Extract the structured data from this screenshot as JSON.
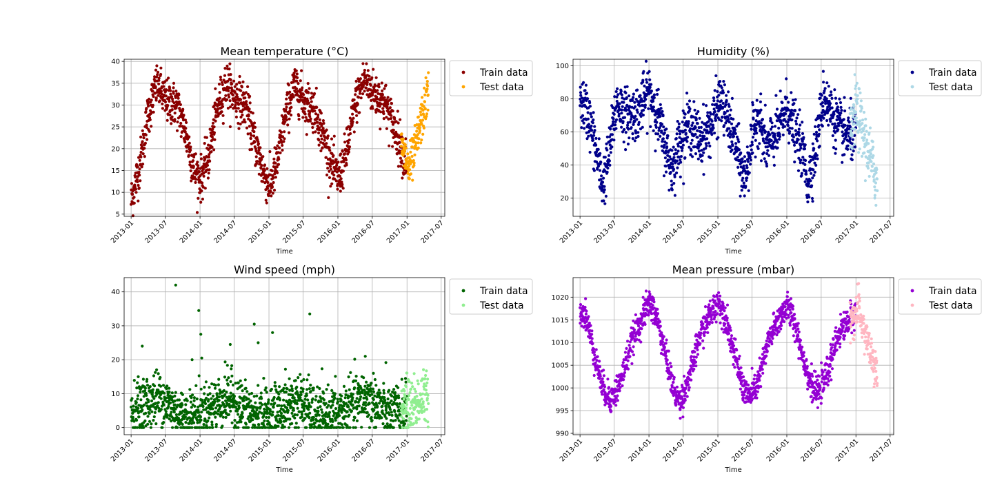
{
  "chart_data": [
    {
      "type": "scatter",
      "title": "Mean temperature (°C)",
      "xlabel": "Time",
      "ylabel": "",
      "xlim": [
        "2012-11-25",
        "2017-07-20"
      ],
      "ylim": [
        4.5,
        40.5
      ],
      "yticks": [
        5,
        10,
        15,
        20,
        25,
        30,
        35,
        40
      ],
      "xticks": [
        "2013-01",
        "2013-07",
        "2014-01",
        "2014-07",
        "2015-01",
        "2015-07",
        "2016-01",
        "2016-07",
        "2017-01",
        "2017-07"
      ],
      "grid": true,
      "legend": "upper-right-outside",
      "series": [
        {
          "name": "Train data",
          "color": "#8b0000",
          "x_range": [
            "2013-01-01",
            "2016-12-31"
          ],
          "trend": [
            [
              "2013-01-01",
              8
            ],
            [
              "2013-02-15",
              16
            ],
            [
              "2013-04-01",
              28
            ],
            [
              "2013-05-20",
              35
            ],
            [
              "2013-07-01",
              31
            ],
            [
              "2013-09-01",
              30
            ],
            [
              "2013-10-15",
              24
            ],
            [
              "2013-12-01",
              15
            ],
            [
              "2014-01-05",
              13
            ],
            [
              "2014-02-15",
              18
            ],
            [
              "2014-04-01",
              29
            ],
            [
              "2014-05-20",
              35
            ],
            [
              "2014-07-01",
              32
            ],
            [
              "2014-09-01",
              30
            ],
            [
              "2014-10-15",
              22
            ],
            [
              "2014-12-01",
              15
            ],
            [
              "2015-01-05",
              11
            ],
            [
              "2015-02-15",
              17
            ],
            [
              "2015-04-01",
              28
            ],
            [
              "2015-05-20",
              35
            ],
            [
              "2015-07-01",
              31
            ],
            [
              "2015-09-01",
              29
            ],
            [
              "2015-10-15",
              23
            ],
            [
              "2015-12-01",
              16
            ],
            [
              "2016-01-05",
              13
            ],
            [
              "2016-02-15",
              19
            ],
            [
              "2016-04-01",
              30
            ],
            [
              "2016-05-20",
              36
            ],
            [
              "2016-07-01",
              33
            ],
            [
              "2016-09-01",
              31
            ],
            [
              "2016-10-15",
              26
            ],
            [
              "2016-12-31",
              17
            ]
          ],
          "spread": 2.5
        },
        {
          "name": "Test data",
          "color": "#ffa500",
          "x_range": [
            "2016-12-01",
            "2017-04-24"
          ],
          "trend": [
            [
              "2016-12-01",
              20
            ],
            [
              "2016-12-25",
              18
            ],
            [
              "2017-01-10",
              15
            ],
            [
              "2017-02-10",
              19
            ],
            [
              "2017-03-10",
              25
            ],
            [
              "2017-04-24",
              33
            ]
          ],
          "spread": 2.5
        }
      ]
    },
    {
      "type": "scatter",
      "title": "Humidity (%)",
      "xlabel": "Time",
      "ylabel": "",
      "xlim": [
        "2012-11-25",
        "2017-07-20"
      ],
      "ylim": [
        9,
        104
      ],
      "yticks": [
        20,
        40,
        60,
        80,
        100
      ],
      "xticks": [
        "2013-01",
        "2013-07",
        "2014-01",
        "2014-07",
        "2015-01",
        "2015-07",
        "2016-01",
        "2016-07",
        "2017-01",
        "2017-07"
      ],
      "grid": true,
      "legend": "upper-right-outside",
      "series": [
        {
          "name": "Train data",
          "color": "#00008b",
          "x_range": [
            "2013-01-01",
            "2016-12-31"
          ],
          "trend": [
            [
              "2013-01-01",
              80
            ],
            [
              "2013-02-15",
              70
            ],
            [
              "2013-04-01",
              45
            ],
            [
              "2013-05-01",
              28
            ],
            [
              "2013-06-01",
              45
            ],
            [
              "2013-07-15",
              78
            ],
            [
              "2013-09-01",
              70
            ],
            [
              "2013-11-01",
              72
            ],
            [
              "2014-01-01",
              85
            ],
            [
              "2014-02-15",
              70
            ],
            [
              "2014-04-01",
              50
            ],
            [
              "2014-05-01",
              37
            ],
            [
              "2014-06-15",
              55
            ],
            [
              "2014-08-01",
              65
            ],
            [
              "2014-10-01",
              55
            ],
            [
              "2014-12-01",
              65
            ],
            [
              "2015-01-15",
              80
            ],
            [
              "2015-03-01",
              65
            ],
            [
              "2015-04-15",
              48
            ],
            [
              "2015-05-20",
              30
            ],
            [
              "2015-07-01",
              55
            ],
            [
              "2015-08-01",
              72
            ],
            [
              "2015-09-15",
              50
            ],
            [
              "2015-11-15",
              60
            ],
            [
              "2016-01-01",
              75
            ],
            [
              "2016-02-15",
              60
            ],
            [
              "2016-04-01",
              45
            ],
            [
              "2016-04-20",
              28
            ],
            [
              "2016-06-01",
              50
            ],
            [
              "2016-07-15",
              82
            ],
            [
              "2016-09-01",
              70
            ],
            [
              "2016-11-01",
              58
            ],
            [
              "2016-12-31",
              58
            ]
          ],
          "spread": 8
        },
        {
          "name": "Test data",
          "color": "#add8e6",
          "x_range": [
            "2016-12-01",
            "2017-04-24"
          ],
          "trend": [
            [
              "2016-12-01",
              55
            ],
            [
              "2017-01-01",
              75
            ],
            [
              "2017-02-01",
              62
            ],
            [
              "2017-03-01",
              50
            ],
            [
              "2017-04-24",
              30
            ]
          ],
          "spread": 9
        }
      ]
    },
    {
      "type": "scatter",
      "title": "Wind speed (mph)",
      "xlabel": "Time",
      "ylabel": "",
      "xlim": [
        "2012-11-25",
        "2017-07-20"
      ],
      "ylim": [
        -2.1,
        44.2
      ],
      "yticks": [
        0,
        10,
        20,
        30,
        40
      ],
      "xticks": [
        "2013-01",
        "2013-07",
        "2014-01",
        "2014-07",
        "2015-01",
        "2015-07",
        "2016-01",
        "2016-07",
        "2017-01",
        "2017-07"
      ],
      "grid": true,
      "legend": "upper-right-outside",
      "series": [
        {
          "name": "Train data",
          "color": "#006400",
          "x_range": [
            "2013-01-01",
            "2016-12-31"
          ],
          "trend": [
            [
              "2013-01-01",
              5
            ],
            [
              "2013-06-01",
              9
            ],
            [
              "2013-10-01",
              3
            ],
            [
              "2014-01-01",
              4
            ],
            [
              "2014-06-01",
              9
            ],
            [
              "2014-10-01",
              4
            ],
            [
              "2015-01-01",
              4
            ],
            [
              "2015-06-01",
              8
            ],
            [
              "2015-10-01",
              3
            ],
            [
              "2016-01-01",
              4
            ],
            [
              "2016-06-01",
              9
            ],
            [
              "2016-10-01",
              4
            ],
            [
              "2016-12-31",
              5
            ]
          ],
          "spread": 4,
          "outliers": [
            [
              "2013-03-01",
              24
            ],
            [
              "2013-08-25",
              42
            ],
            [
              "2013-11-20",
              20
            ],
            [
              "2013-12-25",
              34.5
            ],
            [
              "2014-01-05",
              27.5
            ],
            [
              "2014-01-10",
              20.5
            ],
            [
              "2014-06-10",
              24.5
            ],
            [
              "2014-10-15",
              30.5
            ],
            [
              "2014-11-05",
              25
            ],
            [
              "2015-01-20",
              28
            ],
            [
              "2015-08-05",
              33.5
            ],
            [
              "2016-05-25",
              21
            ]
          ]
        },
        {
          "name": "Test data",
          "color": "#90ee90",
          "x_range": [
            "2016-12-01",
            "2017-04-24"
          ],
          "trend": [
            [
              "2016-12-01",
              6
            ],
            [
              "2017-02-01",
              7
            ],
            [
              "2017-04-24",
              9
            ]
          ],
          "spread": 4
        }
      ]
    },
    {
      "type": "scatter",
      "title": "Mean pressure (mbar)",
      "xlabel": "Time",
      "ylabel": "",
      "xlim": [
        "2012-11-25",
        "2017-07-20"
      ],
      "ylim": [
        989.7,
        1024.3
      ],
      "yticks": [
        990,
        995,
        1000,
        1005,
        1010,
        1015,
        1020
      ],
      "xticks": [
        "2013-01",
        "2013-07",
        "2014-01",
        "2014-07",
        "2015-01",
        "2015-07",
        "2016-01",
        "2016-07",
        "2017-01",
        "2017-07"
      ],
      "grid": true,
      "legend": "upper-right-outside",
      "series": [
        {
          "name": "Train data",
          "color": "#9400d3",
          "x_range": [
            "2013-01-01",
            "2016-12-31"
          ],
          "trend": [
            [
              "2013-01-01",
              1017
            ],
            [
              "2013-02-01",
              1016
            ],
            [
              "2013-03-15",
              1008
            ],
            [
              "2013-05-01",
              1000
            ],
            [
              "2013-06-15",
              997.5
            ],
            [
              "2013-08-01",
              1001
            ],
            [
              "2013-10-01",
              1010
            ],
            [
              "2013-12-01",
              1016
            ],
            [
              "2014-01-05",
              1019
            ],
            [
              "2014-02-15",
              1015
            ],
            [
              "2014-04-01",
              1007
            ],
            [
              "2014-05-15",
              999
            ],
            [
              "2014-06-15",
              997
            ],
            [
              "2014-08-01",
              1002
            ],
            [
              "2014-10-01",
              1012
            ],
            [
              "2014-12-01",
              1017
            ],
            [
              "2015-01-05",
              1019
            ],
            [
              "2015-02-15",
              1015
            ],
            [
              "2015-04-01",
              1007
            ],
            [
              "2015-05-15",
              1000
            ],
            [
              "2015-06-15",
              998
            ],
            [
              "2015-08-01",
              1001
            ],
            [
              "2015-10-01",
              1011
            ],
            [
              "2015-12-01",
              1016
            ],
            [
              "2016-01-05",
              1018
            ],
            [
              "2016-02-15",
              1014
            ],
            [
              "2016-04-01",
              1006
            ],
            [
              "2016-05-15",
              1000
            ],
            [
              "2016-06-15",
              999
            ],
            [
              "2016-08-01",
              1003
            ],
            [
              "2016-10-01",
              1012
            ],
            [
              "2016-12-31",
              1017
            ]
          ],
          "spread": 1.6
        },
        {
          "name": "Test data",
          "color": "#ffb6c1",
          "x_range": [
            "2016-12-01",
            "2017-04-24"
          ],
          "trend": [
            [
              "2016-12-01",
              1015
            ],
            [
              "2017-01-15",
              1017
            ],
            [
              "2017-02-20",
              1012
            ],
            [
              "2017-04-24",
              1002
            ]
          ],
          "spread": 2.2
        }
      ]
    }
  ]
}
